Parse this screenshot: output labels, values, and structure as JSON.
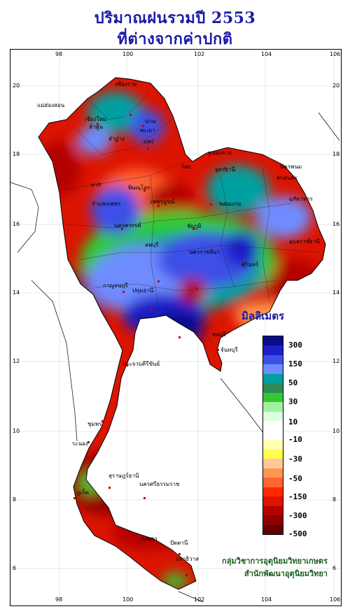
{
  "title_line1": "ปริมาณฝนรวมปี  2553",
  "title_line2": "ที่ต่างจากค่าปกติ",
  "axes": {
    "lon_ticks": [
      "98",
      "100",
      "102",
      "104",
      "106"
    ],
    "lat_ticks": [
      "20",
      "18",
      "16",
      "14",
      "12",
      "10",
      "8",
      "6"
    ]
  },
  "legend": {
    "title": "มิลลิเมตร",
    "labels": [
      "300",
      "150",
      "50",
      "30",
      "10",
      "-10",
      "-30",
      "-50",
      "-150",
      "-300",
      "-500"
    ],
    "colors": [
      "#0a0a8c",
      "#1e1ec8",
      "#3c50e6",
      "#6e8cff",
      "#00a0a0",
      "#2e8b57",
      "#32c832",
      "#a0f0a0",
      "#dcffdc",
      "#ffffff",
      "#ffffff",
      "#ffffb0",
      "#ffff50",
      "#ffc896",
      "#ff9650",
      "#ff6432",
      "#ff2800",
      "#dc1400",
      "#b40000",
      "#8c0000",
      "#640000"
    ]
  },
  "places": [
    "เชียงราย",
    "แม่ฮ่องสอน",
    "เชียงใหม่",
    "ลำพูน",
    "พะเยา",
    "น่าน",
    "ลำปาง",
    "แพร่",
    "หนองคาย",
    "เลย",
    "อุดรธานี",
    "นครพนม",
    "สกลนคร",
    "ตาก",
    "พิษณุโลก",
    "มุกดาหาร",
    "กำแพงเพชร",
    "เพชรบูรณ์",
    "ขอนแก่น",
    "นครสวรรค์",
    "ชัยภูมิ",
    "อุบลราชธานี",
    "ลพบุรี",
    "นครราชสีมา",
    "สุรินทร์",
    "กาญจนบุรี",
    "ปทุมธานี",
    "ชลบุรี",
    "จันทบุรี",
    "ประจวบคีรีขันธ์",
    "ชุมพร",
    "ระนอง",
    "สุราษฎร์ธานี",
    "นครศรีธรรมราช",
    "ภูเก็ต",
    "สงขลา",
    "ปัตตานี",
    "นราธิวาส"
  ],
  "credit_line1": "กลุ่มวิชาการอุตุนิยมวิทยาเกษตร",
  "credit_line2": "สำนักพัฒนาอุตุนิยมวิทยา"
}
